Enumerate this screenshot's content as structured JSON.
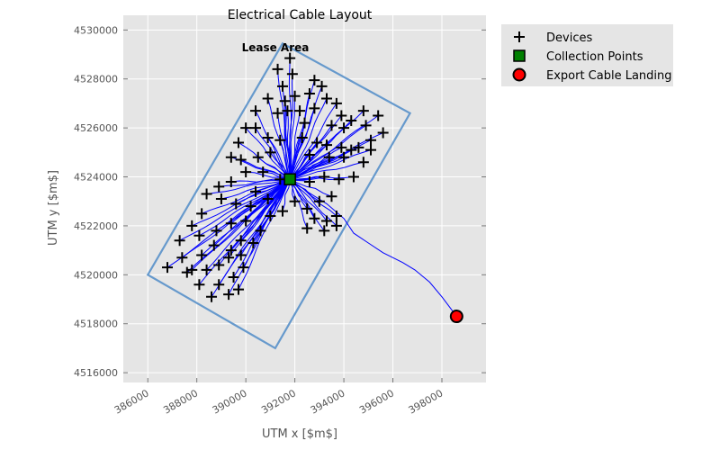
{
  "chart_data": {
    "type": "scatter",
    "title": "Electrical Cable Layout",
    "xlabel": "UTM x [$m$]",
    "ylabel": "UTM y [$m$]",
    "xlim": [
      385000,
      399800
    ],
    "ylim": [
      4515600,
      4530600
    ],
    "xticks": [
      386000,
      388000,
      390000,
      392000,
      394000,
      396000,
      398000
    ],
    "yticks": [
      4516000,
      4518000,
      4520000,
      4522000,
      4524000,
      4526000,
      4528000,
      4530000
    ],
    "grid": true,
    "legend_position": "outside-top-right",
    "annotation": {
      "text": "Lease Area",
      "x": 392000,
      "y": 4529600
    },
    "colors": {
      "background": "#e5e5e5",
      "lease": "#6699cc",
      "cable": "#0000ff",
      "collection": "#008000",
      "landing": "#ff0000"
    },
    "legend": [
      {
        "label": "Devices",
        "marker": "plus"
      },
      {
        "label": "Collection Points",
        "marker": "square"
      },
      {
        "label": "Export Cable Landing",
        "marker": "circle"
      }
    ],
    "series": [
      {
        "name": "Lease Area",
        "kind": "polygon",
        "points": [
          [
            391500,
            4529450
          ],
          [
            396700,
            4526600
          ],
          [
            391200,
            4517000
          ],
          [
            386000,
            4520000
          ]
        ]
      },
      {
        "name": "Devices",
        "kind": "points",
        "points": [
          [
            391800,
            4528850
          ],
          [
            391300,
            4528400
          ],
          [
            391900,
            4528200
          ],
          [
            391500,
            4527700
          ],
          [
            391600,
            4527100
          ],
          [
            390900,
            4527200
          ],
          [
            392800,
            4527950
          ],
          [
            393100,
            4527700
          ],
          [
            392600,
            4527400
          ],
          [
            392000,
            4527300
          ],
          [
            391700,
            4526700
          ],
          [
            392200,
            4526700
          ],
          [
            393300,
            4527200
          ],
          [
            393700,
            4527000
          ],
          [
            392800,
            4526800
          ],
          [
            393900,
            4526500
          ],
          [
            394300,
            4526300
          ],
          [
            394800,
            4526700
          ],
          [
            395400,
            4526500
          ],
          [
            395600,
            4525800
          ],
          [
            394900,
            4526100
          ],
          [
            394000,
            4526000
          ],
          [
            393500,
            4526100
          ],
          [
            392400,
            4526200
          ],
          [
            390400,
            4526700
          ],
          [
            391300,
            4526600
          ],
          [
            390400,
            4526000
          ],
          [
            390000,
            4526000
          ],
          [
            389700,
            4525400
          ],
          [
            389400,
            4524800
          ],
          [
            389800,
            4524700
          ],
          [
            390500,
            4524800
          ],
          [
            391000,
            4525000
          ],
          [
            391400,
            4525500
          ],
          [
            390900,
            4525600
          ],
          [
            392300,
            4525600
          ],
          [
            392900,
            4525400
          ],
          [
            393300,
            4525300
          ],
          [
            393900,
            4525200
          ],
          [
            394600,
            4525200
          ],
          [
            395100,
            4525500
          ],
          [
            394000,
            4524800
          ],
          [
            393400,
            4524800
          ],
          [
            392600,
            4524900
          ],
          [
            395100,
            4525100
          ],
          [
            394300,
            4525100
          ],
          [
            394800,
            4524600
          ],
          [
            394400,
            4524000
          ],
          [
            393800,
            4523900
          ],
          [
            393200,
            4524000
          ],
          [
            392600,
            4523800
          ],
          [
            391400,
            4523900
          ],
          [
            390700,
            4524200
          ],
          [
            390000,
            4524200
          ],
          [
            389400,
            4523800
          ],
          [
            388900,
            4523600
          ],
          [
            388400,
            4523300
          ],
          [
            389000,
            4523100
          ],
          [
            389600,
            4522900
          ],
          [
            390200,
            4522800
          ],
          [
            390900,
            4523100
          ],
          [
            390400,
            4523400
          ],
          [
            391000,
            4522400
          ],
          [
            391500,
            4522600
          ],
          [
            392000,
            4523000
          ],
          [
            392500,
            4522700
          ],
          [
            393000,
            4523000
          ],
          [
            393500,
            4523200
          ],
          [
            392800,
            4522300
          ],
          [
            393300,
            4522200
          ],
          [
            393700,
            4522400
          ],
          [
            393700,
            4522000
          ],
          [
            393200,
            4521800
          ],
          [
            392500,
            4521900
          ],
          [
            388200,
            4522500
          ],
          [
            387800,
            4522000
          ],
          [
            388100,
            4521600
          ],
          [
            388800,
            4521800
          ],
          [
            389400,
            4522100
          ],
          [
            390000,
            4522200
          ],
          [
            390600,
            4521800
          ],
          [
            390300,
            4521300
          ],
          [
            389800,
            4521400
          ],
          [
            389400,
            4521000
          ],
          [
            388700,
            4521200
          ],
          [
            388200,
            4520800
          ],
          [
            387800,
            4520200
          ],
          [
            387400,
            4520700
          ],
          [
            387300,
            4521400
          ],
          [
            386800,
            4520300
          ],
          [
            388400,
            4520200
          ],
          [
            388900,
            4520400
          ],
          [
            389300,
            4520700
          ],
          [
            389800,
            4520800
          ],
          [
            389900,
            4520300
          ],
          [
            389500,
            4519900
          ],
          [
            388900,
            4519600
          ],
          [
            388600,
            4519100
          ],
          [
            388100,
            4519600
          ],
          [
            387600,
            4520100
          ],
          [
            389300,
            4519200
          ],
          [
            389700,
            4519400
          ]
        ]
      },
      {
        "name": "Collection Points",
        "kind": "points",
        "points": [
          [
            391800,
            4523900
          ]
        ]
      },
      {
        "name": "Export Cable Landing",
        "kind": "points",
        "points": [
          [
            398600,
            4518300
          ]
        ]
      },
      {
        "name": "Export Cable",
        "kind": "line",
        "points": [
          [
            391800,
            4523900
          ],
          [
            392500,
            4523400
          ],
          [
            393300,
            4522900
          ],
          [
            394000,
            4522300
          ],
          [
            394400,
            4521700
          ],
          [
            395000,
            4521300
          ],
          [
            395600,
            4520900
          ],
          [
            396400,
            4520500
          ],
          [
            396900,
            4520200
          ],
          [
            397500,
            4519700
          ],
          [
            398000,
            4519100
          ],
          [
            398300,
            4518700
          ],
          [
            398600,
            4518300
          ]
        ]
      }
    ]
  }
}
